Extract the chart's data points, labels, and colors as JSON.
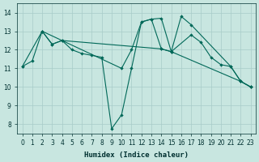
{
  "xlabel": "Humidex (Indice chaleur)",
  "background_color": "#c8e6e0",
  "grid_color": "#a8ccc8",
  "line_color": "#006858",
  "xlim": [
    -0.5,
    23.5
  ],
  "ylim": [
    7.5,
    14.5
  ],
  "yticks": [
    8,
    9,
    10,
    11,
    12,
    13,
    14
  ],
  "xticks": [
    0,
    1,
    2,
    3,
    4,
    5,
    6,
    7,
    8,
    9,
    10,
    11,
    12,
    13,
    14,
    15,
    16,
    17,
    18,
    19,
    20,
    21,
    22,
    23
  ],
  "line1_x": [
    0,
    1,
    2,
    3,
    4,
    5,
    6,
    7,
    8,
    9,
    10,
    11,
    12,
    13,
    14,
    15,
    16,
    17,
    21,
    22,
    23
  ],
  "line1_y": [
    11.1,
    11.4,
    13.0,
    12.3,
    12.5,
    12.0,
    11.8,
    11.7,
    11.6,
    7.75,
    8.5,
    11.0,
    13.5,
    13.65,
    13.7,
    11.9,
    13.8,
    13.35,
    11.1,
    10.3,
    10.0
  ],
  "line2_x": [
    2,
    3,
    4,
    14,
    15,
    17,
    18,
    19,
    20,
    21,
    22,
    23
  ],
  "line2_y": [
    13.0,
    12.3,
    12.5,
    12.05,
    11.9,
    12.8,
    12.4,
    11.6,
    11.2,
    11.1,
    10.3,
    10.0
  ],
  "line3_x": [
    0,
    2,
    10,
    11,
    12,
    13,
    14,
    15,
    22,
    23
  ],
  "line3_y": [
    11.1,
    13.0,
    11.0,
    12.0,
    13.5,
    13.65,
    12.05,
    11.9,
    10.3,
    10.0
  ]
}
